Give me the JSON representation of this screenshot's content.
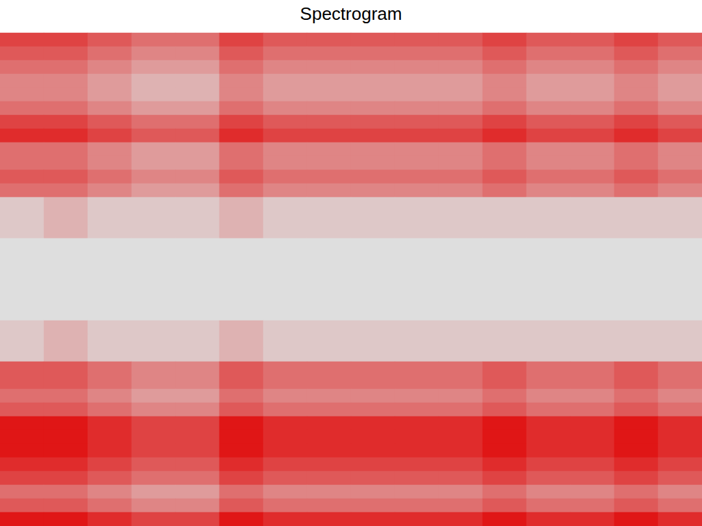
{
  "chart_data": {
    "type": "heatmap",
    "title": "Spectrogram",
    "color": "#e00000",
    "zlim": [
      0,
      10
    ],
    "tick_labels": false,
    "cells": [
      [
        7,
        7,
        6,
        5,
        5,
        7,
        6,
        6,
        6,
        6,
        6,
        7,
        6,
        6,
        7,
        6
      ],
      [
        6,
        6,
        5,
        4,
        4,
        6,
        5,
        5,
        5,
        5,
        5,
        6,
        5,
        5,
        6,
        5
      ],
      [
        5,
        5,
        4,
        3,
        3,
        5,
        4,
        4,
        4,
        4,
        4,
        5,
        4,
        4,
        5,
        4
      ],
      [
        4,
        4,
        3,
        2,
        2,
        4,
        3,
        3,
        3,
        3,
        3,
        4,
        3,
        3,
        4,
        3
      ],
      [
        4,
        4,
        3,
        2,
        2,
        4,
        3,
        3,
        3,
        3,
        3,
        4,
        3,
        3,
        4,
        3
      ],
      [
        5,
        5,
        4,
        3,
        3,
        5,
        4,
        4,
        4,
        4,
        4,
        5,
        4,
        4,
        5,
        4
      ],
      [
        7,
        7,
        6,
        5,
        5,
        7,
        6,
        6,
        6,
        6,
        6,
        7,
        6,
        6,
        7,
        6
      ],
      [
        8,
        8,
        7,
        6,
        6,
        8,
        7,
        7,
        7,
        7,
        7,
        8,
        7,
        7,
        8,
        7
      ],
      [
        5,
        5,
        4,
        3,
        3,
        5,
        4,
        4,
        4,
        4,
        4,
        5,
        4,
        4,
        5,
        4
      ],
      [
        5,
        5,
        4,
        3,
        3,
        5,
        4,
        4,
        4,
        4,
        4,
        5,
        4,
        4,
        5,
        4
      ],
      [
        6,
        6,
        5,
        4,
        4,
        6,
        5,
        5,
        5,
        5,
        5,
        6,
        5,
        5,
        6,
        5
      ],
      [
        5,
        5,
        4,
        3,
        3,
        5,
        4,
        4,
        4,
        4,
        4,
        5,
        4,
        4,
        5,
        4
      ],
      [
        1,
        2,
        1,
        1,
        1,
        2,
        1,
        1,
        1,
        1,
        1,
        1,
        1,
        1,
        1,
        1
      ],
      [
        1,
        2,
        1,
        1,
        1,
        2,
        1,
        1,
        1,
        1,
        1,
        1,
        1,
        1,
        1,
        1
      ],
      [
        1,
        2,
        1,
        1,
        1,
        2,
        1,
        1,
        1,
        1,
        1,
        1,
        1,
        1,
        1,
        1
      ],
      [
        0,
        0,
        0,
        0,
        0,
        0,
        0,
        0,
        0,
        0,
        0,
        0,
        0,
        0,
        0,
        0
      ],
      [
        0,
        0,
        0,
        0,
        0,
        0,
        0,
        0,
        0,
        0,
        0,
        0,
        0,
        0,
        0,
        0
      ],
      [
        0,
        0,
        0,
        0,
        0,
        0,
        0,
        0,
        0,
        0,
        0,
        0,
        0,
        0,
        0,
        0
      ],
      [
        0,
        0,
        0,
        0,
        0,
        0,
        0,
        0,
        0,
        0,
        0,
        0,
        0,
        0,
        0,
        0
      ],
      [
        0,
        0,
        0,
        0,
        0,
        0,
        0,
        0,
        0,
        0,
        0,
        0,
        0,
        0,
        0,
        0
      ],
      [
        0,
        0,
        0,
        0,
        0,
        0,
        0,
        0,
        0,
        0,
        0,
        0,
        0,
        0,
        0,
        0
      ],
      [
        1,
        2,
        1,
        1,
        1,
        2,
        1,
        1,
        1,
        1,
        1,
        1,
        1,
        1,
        1,
        1
      ],
      [
        1,
        2,
        1,
        1,
        1,
        2,
        1,
        1,
        1,
        1,
        1,
        1,
        1,
        1,
        1,
        1
      ],
      [
        1,
        2,
        1,
        1,
        1,
        2,
        1,
        1,
        1,
        1,
        1,
        1,
        1,
        1,
        1,
        1
      ],
      [
        6,
        6,
        5,
        4,
        4,
        6,
        5,
        5,
        5,
        5,
        5,
        6,
        5,
        5,
        6,
        5
      ],
      [
        6,
        6,
        5,
        4,
        4,
        6,
        5,
        5,
        5,
        5,
        5,
        6,
        5,
        5,
        6,
        5
      ],
      [
        5,
        5,
        4,
        3,
        3,
        5,
        4,
        4,
        4,
        4,
        4,
        5,
        4,
        4,
        5,
        4
      ],
      [
        6,
        6,
        5,
        4,
        4,
        6,
        5,
        5,
        5,
        5,
        5,
        6,
        5,
        5,
        6,
        5
      ],
      [
        9,
        9,
        8,
        7,
        7,
        9,
        8,
        8,
        8,
        8,
        8,
        9,
        8,
        8,
        9,
        8
      ],
      [
        9,
        9,
        8,
        7,
        7,
        9,
        8,
        8,
        8,
        8,
        8,
        9,
        8,
        8,
        9,
        8
      ],
      [
        9,
        9,
        8,
        7,
        7,
        9,
        8,
        8,
        8,
        8,
        8,
        9,
        8,
        8,
        9,
        8
      ],
      [
        8,
        8,
        7,
        6,
        6,
        8,
        7,
        7,
        7,
        7,
        7,
        8,
        7,
        7,
        8,
        7
      ],
      [
        7,
        7,
        6,
        5,
        5,
        7,
        6,
        6,
        6,
        6,
        6,
        7,
        6,
        6,
        7,
        6
      ],
      [
        5,
        5,
        4,
        3,
        3,
        5,
        4,
        4,
        4,
        4,
        4,
        5,
        4,
        4,
        5,
        4
      ],
      [
        6,
        6,
        5,
        4,
        4,
        6,
        5,
        5,
        5,
        5,
        5,
        6,
        5,
        5,
        6,
        5
      ],
      [
        9,
        9,
        8,
        7,
        7,
        9,
        8,
        8,
        8,
        8,
        8,
        9,
        8,
        8,
        9,
        8
      ]
    ]
  }
}
